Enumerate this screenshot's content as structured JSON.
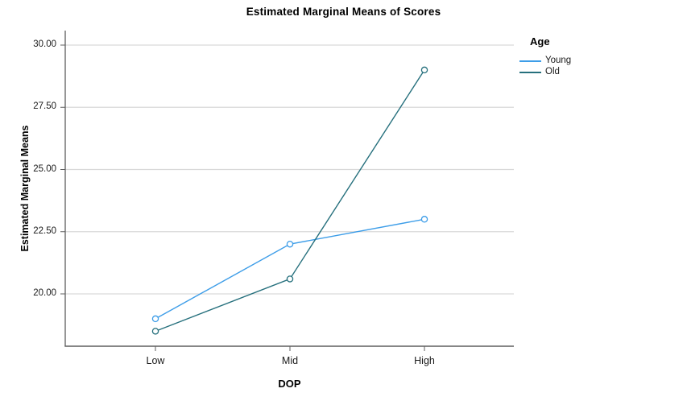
{
  "chart_data": {
    "type": "line",
    "title": "Estimated Marginal Means of Scores",
    "xlabel": "DOP",
    "ylabel": "Estimated Marginal Means",
    "categories": [
      "Low",
      "Mid",
      "High"
    ],
    "series": [
      {
        "name": "Young",
        "values": [
          19.0,
          22.0,
          23.0
        ],
        "color": "#3D9DE8"
      },
      {
        "name": "Old",
        "values": [
          18.5,
          20.6,
          29.0
        ],
        "color": "#26707D"
      }
    ],
    "legend_title": "Age",
    "legend_position": "right",
    "yticks": [
      {
        "label": "30.00",
        "value": 30.0
      },
      {
        "label": "27.50",
        "value": 27.5
      },
      {
        "label": "25.00",
        "value": 25.0
      },
      {
        "label": "22.50",
        "value": 22.5
      },
      {
        "label": "20.00",
        "value": 20.0
      }
    ],
    "ylim": [
      17.9,
      30.6
    ],
    "grid": "horizontal",
    "marker": "open-circle",
    "colors": {
      "gridline": "#D9D9D9",
      "axis": "#5F5F5F",
      "text": "#000000"
    }
  }
}
